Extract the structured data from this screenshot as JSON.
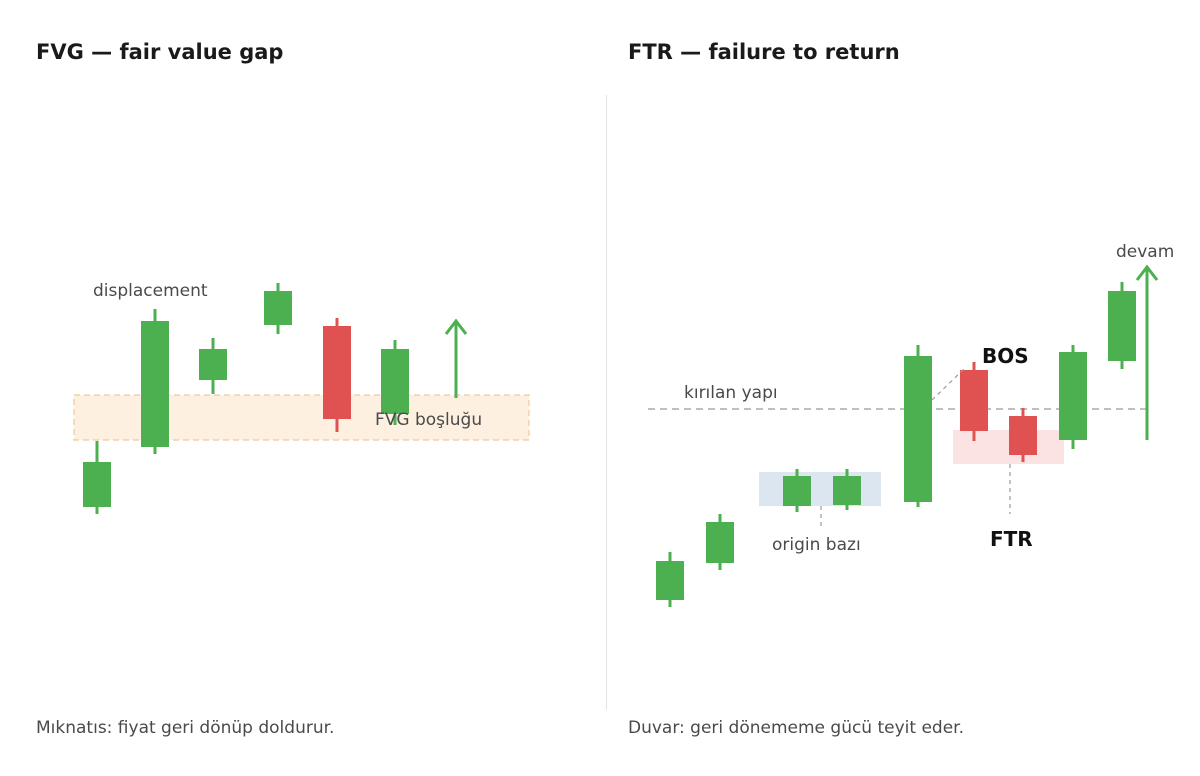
{
  "left_panel": {
    "title": "FVG — fair value gap",
    "caption": "Mıknatıs: fiyat geri dönüp doldurur.",
    "displacement_label": "displacement",
    "gap_label": "FVG boşluğu"
  },
  "right_panel": {
    "title": "FTR — failure to return",
    "caption": "Duvar: geri dönememe gücü teyit eder.",
    "broken_structure_label": "kırılan yapı",
    "origin_label": "origin bazı",
    "bos_label": "BOS",
    "ftr_label": "FTR",
    "continue_label": "devam"
  },
  "colors": {
    "bull": "#4caf50",
    "bear": "#e05252",
    "fvg_zone": "#fdf0e0",
    "fvg_border": "#f0c89a",
    "origin_zone": "#dce6f0",
    "ftr_zone": "#fbe3e3",
    "guide": "#9a9a9a"
  }
}
